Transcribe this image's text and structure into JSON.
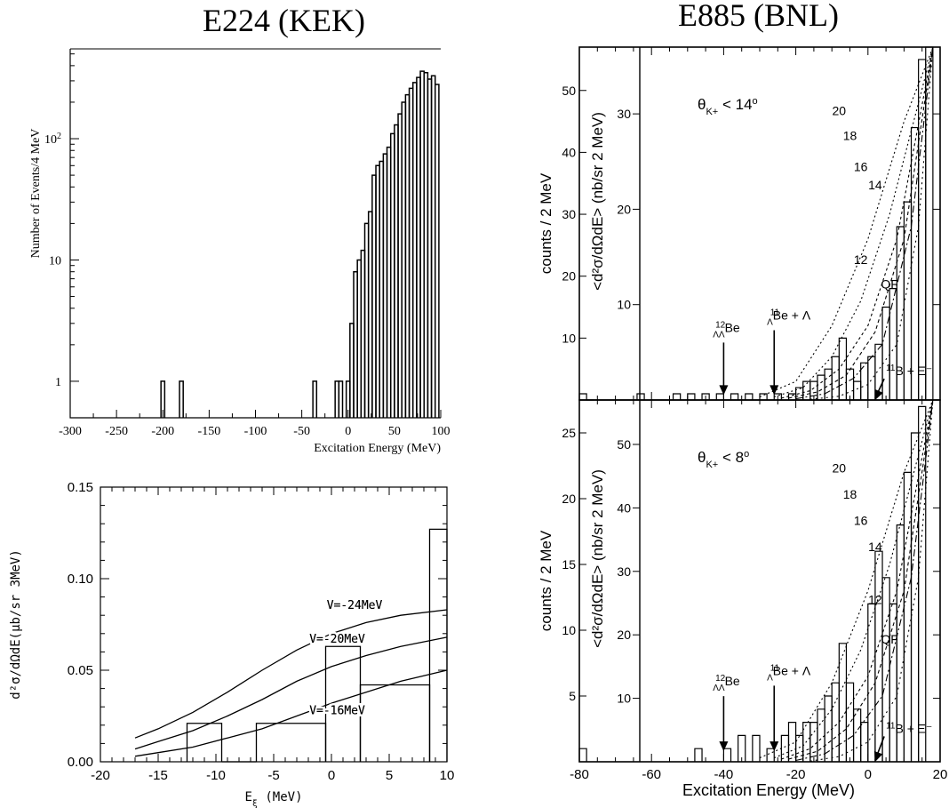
{
  "headings": {
    "left": "E224 (KEK)",
    "right": "E885 (BNL)"
  },
  "chart_data": [
    {
      "id": "kek-spectrum",
      "type": "histogram",
      "xlabel": "Excitation Energy (MeV)",
      "ylabel": "Number of Events/4 MeV",
      "xlim": [
        -300,
        100
      ],
      "ylim": [
        0.5,
        550
      ],
      "yscale": "log",
      "xticks": [
        -300,
        -250,
        -200,
        -150,
        -100,
        -50,
        0,
        50,
        100
      ],
      "yticks": [
        {
          "v": 1,
          "label": "1"
        },
        {
          "v": 10,
          "label": "10"
        },
        {
          "v": 100,
          "label": "10",
          "sup": "2"
        }
      ],
      "bin_width": 4,
      "bins": [
        [
          -202,
          1
        ],
        [
          -182,
          1
        ],
        [
          -38,
          1
        ],
        [
          -14,
          1
        ],
        [
          -10,
          1
        ],
        [
          -2,
          1
        ],
        [
          2,
          3
        ],
        [
          6,
          8
        ],
        [
          10,
          10
        ],
        [
          14,
          12
        ],
        [
          18,
          20
        ],
        [
          22,
          25
        ],
        [
          26,
          50
        ],
        [
          30,
          60
        ],
        [
          34,
          65
        ],
        [
          38,
          75
        ],
        [
          42,
          85
        ],
        [
          46,
          110
        ],
        [
          50,
          130
        ],
        [
          54,
          160
        ],
        [
          58,
          200
        ],
        [
          62,
          230
        ],
        [
          66,
          260
        ],
        [
          70,
          290
        ],
        [
          74,
          320
        ],
        [
          78,
          360
        ],
        [
          82,
          350
        ],
        [
          86,
          310
        ],
        [
          90,
          330
        ],
        [
          94,
          280
        ]
      ]
    },
    {
      "id": "kek-xs",
      "type": "histogram+line",
      "xlabel": "E",
      "xlabel_sub": "ξ",
      "xlabel_units": "(MeV)",
      "ylabel": "d²σ/dΩdE(μb/sr 3MeV)",
      "xlim": [
        -20,
        10
      ],
      "ylim": [
        0,
        0.15
      ],
      "xticks": [
        -20,
        -15,
        -10,
        -5,
        0,
        5,
        10
      ],
      "yticks": [
        {
          "v": 0,
          "label": "0.00"
        },
        {
          "v": 0.05,
          "label": "0.05"
        },
        {
          "v": 0.1,
          "label": "0.10"
        },
        {
          "v": 0.15,
          "label": "0.15"
        }
      ],
      "bins": [
        [
          -12.5,
          -9.5,
          0.021
        ],
        [
          -9.5,
          -6.5,
          0.0
        ],
        [
          -6.5,
          -0.5,
          0.021
        ],
        [
          -0.5,
          2.5,
          0.063
        ],
        [
          2.5,
          8.5,
          0.042
        ],
        [
          8.5,
          10,
          0.127
        ]
      ],
      "curves": [
        {
          "label": "V=-24MeV",
          "x": [
            -17,
            -15,
            -12,
            -9,
            -6,
            -3,
            0,
            3,
            6,
            10
          ],
          "y": [
            0.013,
            0.018,
            0.027,
            0.038,
            0.05,
            0.061,
            0.07,
            0.076,
            0.08,
            0.083
          ]
        },
        {
          "label": "V=-20MeV",
          "x": [
            -17,
            -15,
            -12,
            -9,
            -6,
            -3,
            0,
            3,
            6,
            10
          ],
          "y": [
            0.007,
            0.011,
            0.017,
            0.025,
            0.034,
            0.044,
            0.052,
            0.058,
            0.063,
            0.068
          ]
        },
        {
          "label": "V=-16MeV",
          "x": [
            -17,
            -15,
            -12,
            -9,
            -6,
            -3,
            0,
            3,
            6,
            10
          ],
          "y": [
            0.003,
            0.005,
            0.008,
            0.013,
            0.018,
            0.025,
            0.032,
            0.038,
            0.044,
            0.05
          ]
        }
      ],
      "curve_label_at": [
        {
          "label": "V=-24MeV",
          "x": 2,
          "y": 0.0835
        },
        {
          "label": "V=-20MeV",
          "x": 0.5,
          "y": 0.065
        },
        {
          "label": "V=-16MeV",
          "x": 0.5,
          "y": 0.026
        }
      ]
    },
    {
      "id": "bnl-top",
      "type": "histogram+line",
      "angle_label": "θ",
      "angle_sub": "K+",
      "angle_value": "< 14",
      "angle_sup": "o",
      "xlim": [
        -80,
        20
      ],
      "xticks": [
        -80,
        -60,
        -40,
        -20,
        0,
        20
      ],
      "left_axis": {
        "label": "counts / 2 MeV",
        "ticks": [
          10,
          20,
          30,
          40,
          50
        ],
        "max": 57
      },
      "right_axis": {
        "label": "<d²σ/dΩdE> (nb/sr 2 MeV)",
        "ticks": [
          10,
          20,
          30
        ],
        "max": 37
      },
      "bins": [
        [
          -80,
          1
        ],
        [
          -78,
          0
        ],
        [
          -64,
          1
        ],
        [
          -54,
          1
        ],
        [
          -50,
          1
        ],
        [
          -46,
          1
        ],
        [
          -42,
          1
        ],
        [
          -38,
          1
        ],
        [
          -34,
          1
        ],
        [
          -30,
          1
        ],
        [
          -26,
          1
        ],
        [
          -22,
          1
        ],
        [
          -20,
          2
        ],
        [
          -18,
          3
        ],
        [
          -16,
          3
        ],
        [
          -14,
          4
        ],
        [
          -12,
          5
        ],
        [
          -10,
          7
        ],
        [
          -8,
          10
        ],
        [
          -6,
          5
        ],
        [
          -4,
          3
        ],
        [
          -2,
          6
        ],
        [
          0,
          7
        ],
        [
          2,
          9
        ],
        [
          4,
          15
        ],
        [
          6,
          18
        ],
        [
          8,
          28
        ],
        [
          10,
          32
        ],
        [
          12,
          44
        ],
        [
          14,
          55
        ],
        [
          16,
          57
        ]
      ],
      "curves": [
        {
          "label": "20",
          "x": [
            -30,
            -20,
            -10,
            0,
            10,
            18
          ],
          "y": [
            0.5,
            3,
            12,
            26,
            45,
            57
          ]
        },
        {
          "label": "18",
          "x": [
            -26,
            -18,
            -10,
            -2,
            6,
            18
          ],
          "y": [
            0.5,
            2,
            7,
            16,
            30,
            57
          ]
        },
        {
          "label": "16",
          "x": [
            -24,
            -16,
            -8,
            0,
            8,
            18
          ],
          "y": [
            0.3,
            1.5,
            5,
            12,
            26,
            57
          ]
        },
        {
          "label": "14",
          "x": [
            -22,
            -14,
            -6,
            2,
            10,
            18
          ],
          "y": [
            0.3,
            1.3,
            4,
            11,
            26,
            57
          ]
        },
        {
          "label": "12",
          "x": [
            -20,
            -12,
            -4,
            4,
            12,
            18
          ],
          "y": [
            0.2,
            1,
            3.5,
            9,
            28,
            57
          ]
        },
        {
          "label": "QF",
          "x": [
            -16,
            -8,
            0,
            8,
            14,
            18
          ],
          "y": [
            0.1,
            0.6,
            2.5,
            9,
            28,
            57
          ]
        }
      ],
      "curve_label_at": [
        {
          "label": "20",
          "x": -8,
          "y": 46
        },
        {
          "label": "18",
          "x": -5,
          "y": 42
        },
        {
          "label": "16",
          "x": -2,
          "y": 37
        },
        {
          "label": "14",
          "x": 2,
          "y": 34
        },
        {
          "label": "12",
          "x": -2,
          "y": 22
        },
        {
          "label": "QF",
          "x": 6,
          "y": 18
        }
      ],
      "annotations": [
        {
          "pre": "12",
          "sub": "ΛΛ",
          "text": "Be",
          "x": -43,
          "y": 11,
          "arrow_to": [
            -40,
            0.8
          ]
        },
        {
          "pre": "11",
          "sub": "Λ",
          "text": "Be + Λ",
          "x": -28,
          "y": 13,
          "arrow_to": [
            -26,
            0.8
          ]
        },
        {
          "pre": "11",
          "text": "B + Ξ⁻",
          "x": 5,
          "y": 4,
          "arrow_to": [
            2,
            0
          ]
        }
      ]
    },
    {
      "id": "bnl-bottom",
      "type": "histogram+line",
      "angle_label": "θ",
      "angle_sub": "K+",
      "angle_value": "< 8",
      "angle_sup": "o",
      "xlabel": "Excitation Energy (MeV)",
      "xlim": [
        -80,
        20
      ],
      "xticks": [
        -80,
        -60,
        -40,
        -20,
        0,
        20
      ],
      "left_axis": {
        "label": "counts / 2 MeV",
        "ticks": [
          5,
          10,
          15,
          20,
          25
        ],
        "max": 27.5
      },
      "right_axis": {
        "label": "<d²σ/dΩdE> (nb/sr 2 MeV)",
        "ticks": [
          10,
          20,
          30,
          40,
          50
        ],
        "max": 57
      },
      "bins": [
        [
          -80,
          1
        ],
        [
          -48,
          1
        ],
        [
          -40,
          1
        ],
        [
          -36,
          2
        ],
        [
          -32,
          2
        ],
        [
          -28,
          1
        ],
        [
          -24,
          2
        ],
        [
          -22,
          3
        ],
        [
          -20,
          2
        ],
        [
          -18,
          3
        ],
        [
          -16,
          3
        ],
        [
          -14,
          4
        ],
        [
          -12,
          5
        ],
        [
          -10,
          6
        ],
        [
          -8,
          9
        ],
        [
          -6,
          6
        ],
        [
          -4,
          4
        ],
        [
          -2,
          3
        ],
        [
          0,
          12
        ],
        [
          2,
          16
        ],
        [
          4,
          14
        ],
        [
          6,
          12
        ],
        [
          8,
          18
        ],
        [
          10,
          22
        ],
        [
          12,
          25
        ],
        [
          14,
          27
        ]
      ],
      "curves": [
        {
          "label": "20",
          "x": [
            -30,
            -20,
            -10,
            0,
            10,
            18
          ],
          "y": [
            0.3,
            1.5,
            6,
            13,
            22,
            27.5
          ]
        },
        {
          "label": "18",
          "x": [
            -26,
            -18,
            -10,
            -2,
            6,
            18
          ],
          "y": [
            0.3,
            1.2,
            4,
            8.5,
            15,
            27.5
          ]
        },
        {
          "label": "16",
          "x": [
            -24,
            -16,
            -8,
            0,
            8,
            18
          ],
          "y": [
            0.2,
            1,
            3,
            6.5,
            13,
            27.5
          ]
        },
        {
          "label": "14",
          "x": [
            -22,
            -14,
            -6,
            2,
            10,
            18
          ],
          "y": [
            0.2,
            0.8,
            2.5,
            6,
            13,
            27.5
          ]
        },
        {
          "label": "12",
          "x": [
            -20,
            -12,
            -4,
            4,
            12,
            18
          ],
          "y": [
            0.1,
            0.6,
            2,
            5,
            14,
            27.5
          ]
        },
        {
          "label": "QF",
          "x": [
            -16,
            -8,
            0,
            8,
            14,
            18
          ],
          "y": [
            0.05,
            0.4,
            1.5,
            5,
            14,
            27.5
          ]
        }
      ],
      "curve_label_at": [
        {
          "label": "20",
          "x": -8,
          "y": 22
        },
        {
          "label": "18",
          "x": -5,
          "y": 20
        },
        {
          "label": "16",
          "x": -2,
          "y": 18
        },
        {
          "label": "14",
          "x": 2,
          "y": 16
        },
        {
          "label": "12",
          "x": 2,
          "y": 12
        },
        {
          "label": "QF",
          "x": 6,
          "y": 9
        }
      ],
      "annotations": [
        {
          "pre": "12",
          "sub": "ΛΛ",
          "text": "Be",
          "x": -43,
          "y": 5.8,
          "arrow_to": [
            -40,
            0.8
          ]
        },
        {
          "pre": "11",
          "sub": "Λ",
          "text": "Be + Λ",
          "x": -28,
          "y": 6.6,
          "arrow_to": [
            -26,
            0.8
          ]
        },
        {
          "pre": "11",
          "text": "B + Ξ⁻",
          "x": 5,
          "y": 2.2,
          "arrow_to": [
            2,
            0
          ]
        }
      ]
    }
  ]
}
